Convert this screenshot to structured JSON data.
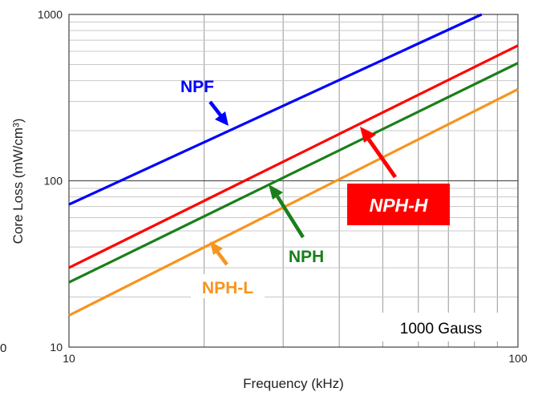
{
  "chart_data": {
    "type": "line",
    "title": "",
    "xlabel": "Frequency (kHz)",
    "ylabel": "Core Loss (mW/cm³)",
    "x_scale": "log",
    "y_scale": "log",
    "xlim": [
      10,
      100
    ],
    "ylim": [
      10,
      1000
    ],
    "grid": true,
    "x_ticks": [
      "10",
      "100"
    ],
    "y_ticks": [
      "10",
      "100",
      "1000"
    ],
    "stray_label": "0",
    "series": [
      {
        "name": "NPF",
        "color": "#0000ff",
        "x": [
          10,
          83
        ],
        "y": [
          72,
          1000
        ]
      },
      {
        "name": "NPH-H",
        "color": "#ff0000",
        "x": [
          10,
          100
        ],
        "y": [
          30,
          650
        ]
      },
      {
        "name": "NPH",
        "color": "#1a7f1a",
        "x": [
          10,
          100
        ],
        "y": [
          24.5,
          510
        ]
      },
      {
        "name": "NPH-L",
        "color": "#f7941d",
        "x": [
          10,
          100
        ],
        "y": [
          15.5,
          355
        ]
      }
    ],
    "annotations": [
      {
        "series": "NPF",
        "label": "NPF",
        "style": "bold",
        "color": "#0000ff"
      },
      {
        "series": "NPH-H",
        "label": "NPH-H",
        "style": "bold-italic-boxed",
        "color": "#ffffff",
        "box": "#ff0000"
      },
      {
        "series": "NPH",
        "label": "NPH",
        "style": "bold",
        "color": "#1a7f1a"
      },
      {
        "series": "NPH-L",
        "label": "NPH-L",
        "style": "bold",
        "color": "#f7941d"
      }
    ],
    "condition_label": "1000 Gauss"
  }
}
